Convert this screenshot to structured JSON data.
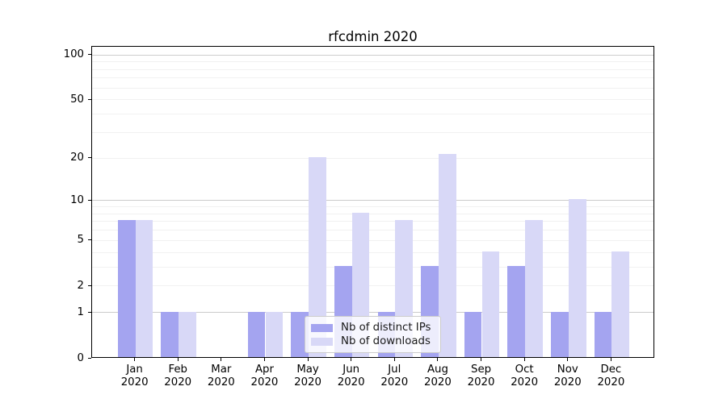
{
  "page": {
    "title": "rfcdmin 2020"
  },
  "chart_data": {
    "type": "bar",
    "title": "rfcdmin 2020",
    "categories": [
      "Jan",
      "Feb",
      "Mar",
      "Apr",
      "May",
      "Jun",
      "Jul",
      "Aug",
      "Sep",
      "Oct",
      "Nov",
      "Dec"
    ],
    "category_year": "2020",
    "series": [
      {
        "name": "Nb of distinct IPs",
        "color": "#a4a4f0",
        "values": [
          7,
          1,
          0,
          1,
          1,
          3,
          1,
          3,
          1,
          3,
          1,
          1
        ]
      },
      {
        "name": "Nb of downloads",
        "color": "#d8d8f7",
        "values": [
          7,
          1,
          0,
          1,
          20,
          8,
          7,
          21,
          4,
          7,
          10,
          4
        ]
      }
    ],
    "xlabel": "",
    "ylabel": "",
    "yscale": "log1p",
    "ylim": [
      0,
      114
    ],
    "yticks": [
      0,
      1,
      2,
      5,
      10,
      20,
      50,
      100
    ],
    "grid_major": [
      1,
      10,
      100
    ],
    "grid_minor": [
      2,
      3,
      4,
      5,
      6,
      7,
      8,
      9,
      20,
      30,
      40,
      50,
      60,
      70,
      80,
      90
    ],
    "grid": "horizontal",
    "legend_position": "lower center",
    "colors": {
      "background": "#ffffff",
      "grid_major": "#cccccc",
      "grid_minor": "#f1f1f1",
      "spine": "#000000",
      "legend_border": "#cccccc",
      "text": "#000000"
    }
  }
}
